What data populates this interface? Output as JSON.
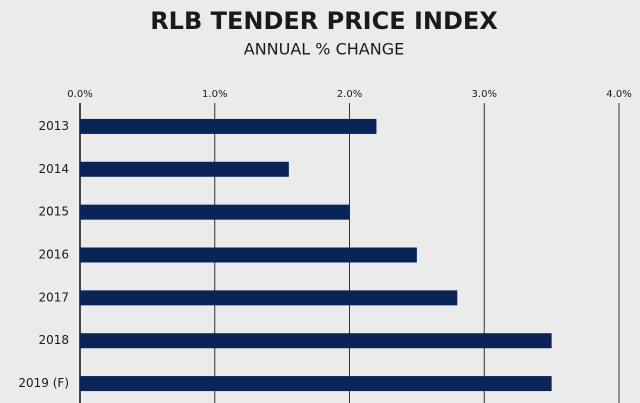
{
  "chart_data": {
    "type": "bar",
    "orientation": "horizontal",
    "title": "RLB TENDER PRICE INDEX",
    "subtitle": "ANNUAL % CHANGE",
    "categories": [
      "2013",
      "2014",
      "2015",
      "2016",
      "2017",
      "2018",
      "2019 (F)"
    ],
    "values": [
      2.2,
      1.55,
      2.0,
      2.5,
      2.8,
      3.5,
      3.5
    ],
    "color": "#0b2457",
    "xlim": [
      0,
      4
    ],
    "xticks": [
      {
        "value": 0,
        "label": "0.0%"
      },
      {
        "value": 1,
        "label": "1.0%"
      },
      {
        "value": 2,
        "label": "2.0%"
      },
      {
        "value": 3,
        "label": "3.0%"
      },
      {
        "value": 4,
        "label": "4.0%"
      }
    ],
    "grid": true
  }
}
